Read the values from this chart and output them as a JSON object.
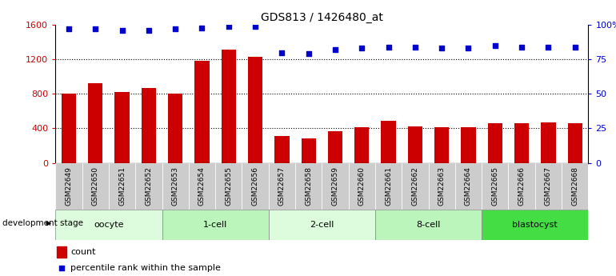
{
  "title": "GDS813 / 1426480_at",
  "categories": [
    "GSM22649",
    "GSM22650",
    "GSM22651",
    "GSM22652",
    "GSM22653",
    "GSM22654",
    "GSM22655",
    "GSM22656",
    "GSM22657",
    "GSM22658",
    "GSM22659",
    "GSM22660",
    "GSM22661",
    "GSM22662",
    "GSM22663",
    "GSM22664",
    "GSM22665",
    "GSM22666",
    "GSM22667",
    "GSM22668"
  ],
  "counts": [
    800,
    920,
    820,
    870,
    800,
    1180,
    1310,
    1230,
    310,
    285,
    370,
    410,
    490,
    420,
    415,
    415,
    460,
    460,
    470,
    460
  ],
  "percentiles": [
    97,
    97,
    96,
    96,
    97,
    98,
    99,
    99,
    80,
    79,
    82,
    83,
    84,
    84,
    83,
    83,
    85,
    84,
    84,
    84
  ],
  "stages": [
    {
      "label": "oocyte",
      "start": 0,
      "end": 4,
      "color": "#ddfcdd"
    },
    {
      "label": "1-cell",
      "start": 4,
      "end": 8,
      "color": "#bbf5bb"
    },
    {
      "label": "2-cell",
      "start": 8,
      "end": 12,
      "color": "#ddfcdd"
    },
    {
      "label": "8-cell",
      "start": 12,
      "end": 16,
      "color": "#bbf5bb"
    },
    {
      "label": "blastocyst",
      "start": 16,
      "end": 20,
      "color": "#44dd44"
    }
  ],
  "ylim_left": [
    0,
    1600
  ],
  "ylim_right": [
    0,
    100
  ],
  "yticks_left": [
    0,
    400,
    800,
    1200,
    1600
  ],
  "yticks_right": [
    0,
    25,
    50,
    75,
    100
  ],
  "bar_color": "#cc0000",
  "dot_color": "#0000cc",
  "grid_color": "#000000",
  "bg_color": "#ffffff",
  "left_label_color": "#cc0000",
  "right_label_color": "#0000cc",
  "xtick_bg": "#cccccc"
}
